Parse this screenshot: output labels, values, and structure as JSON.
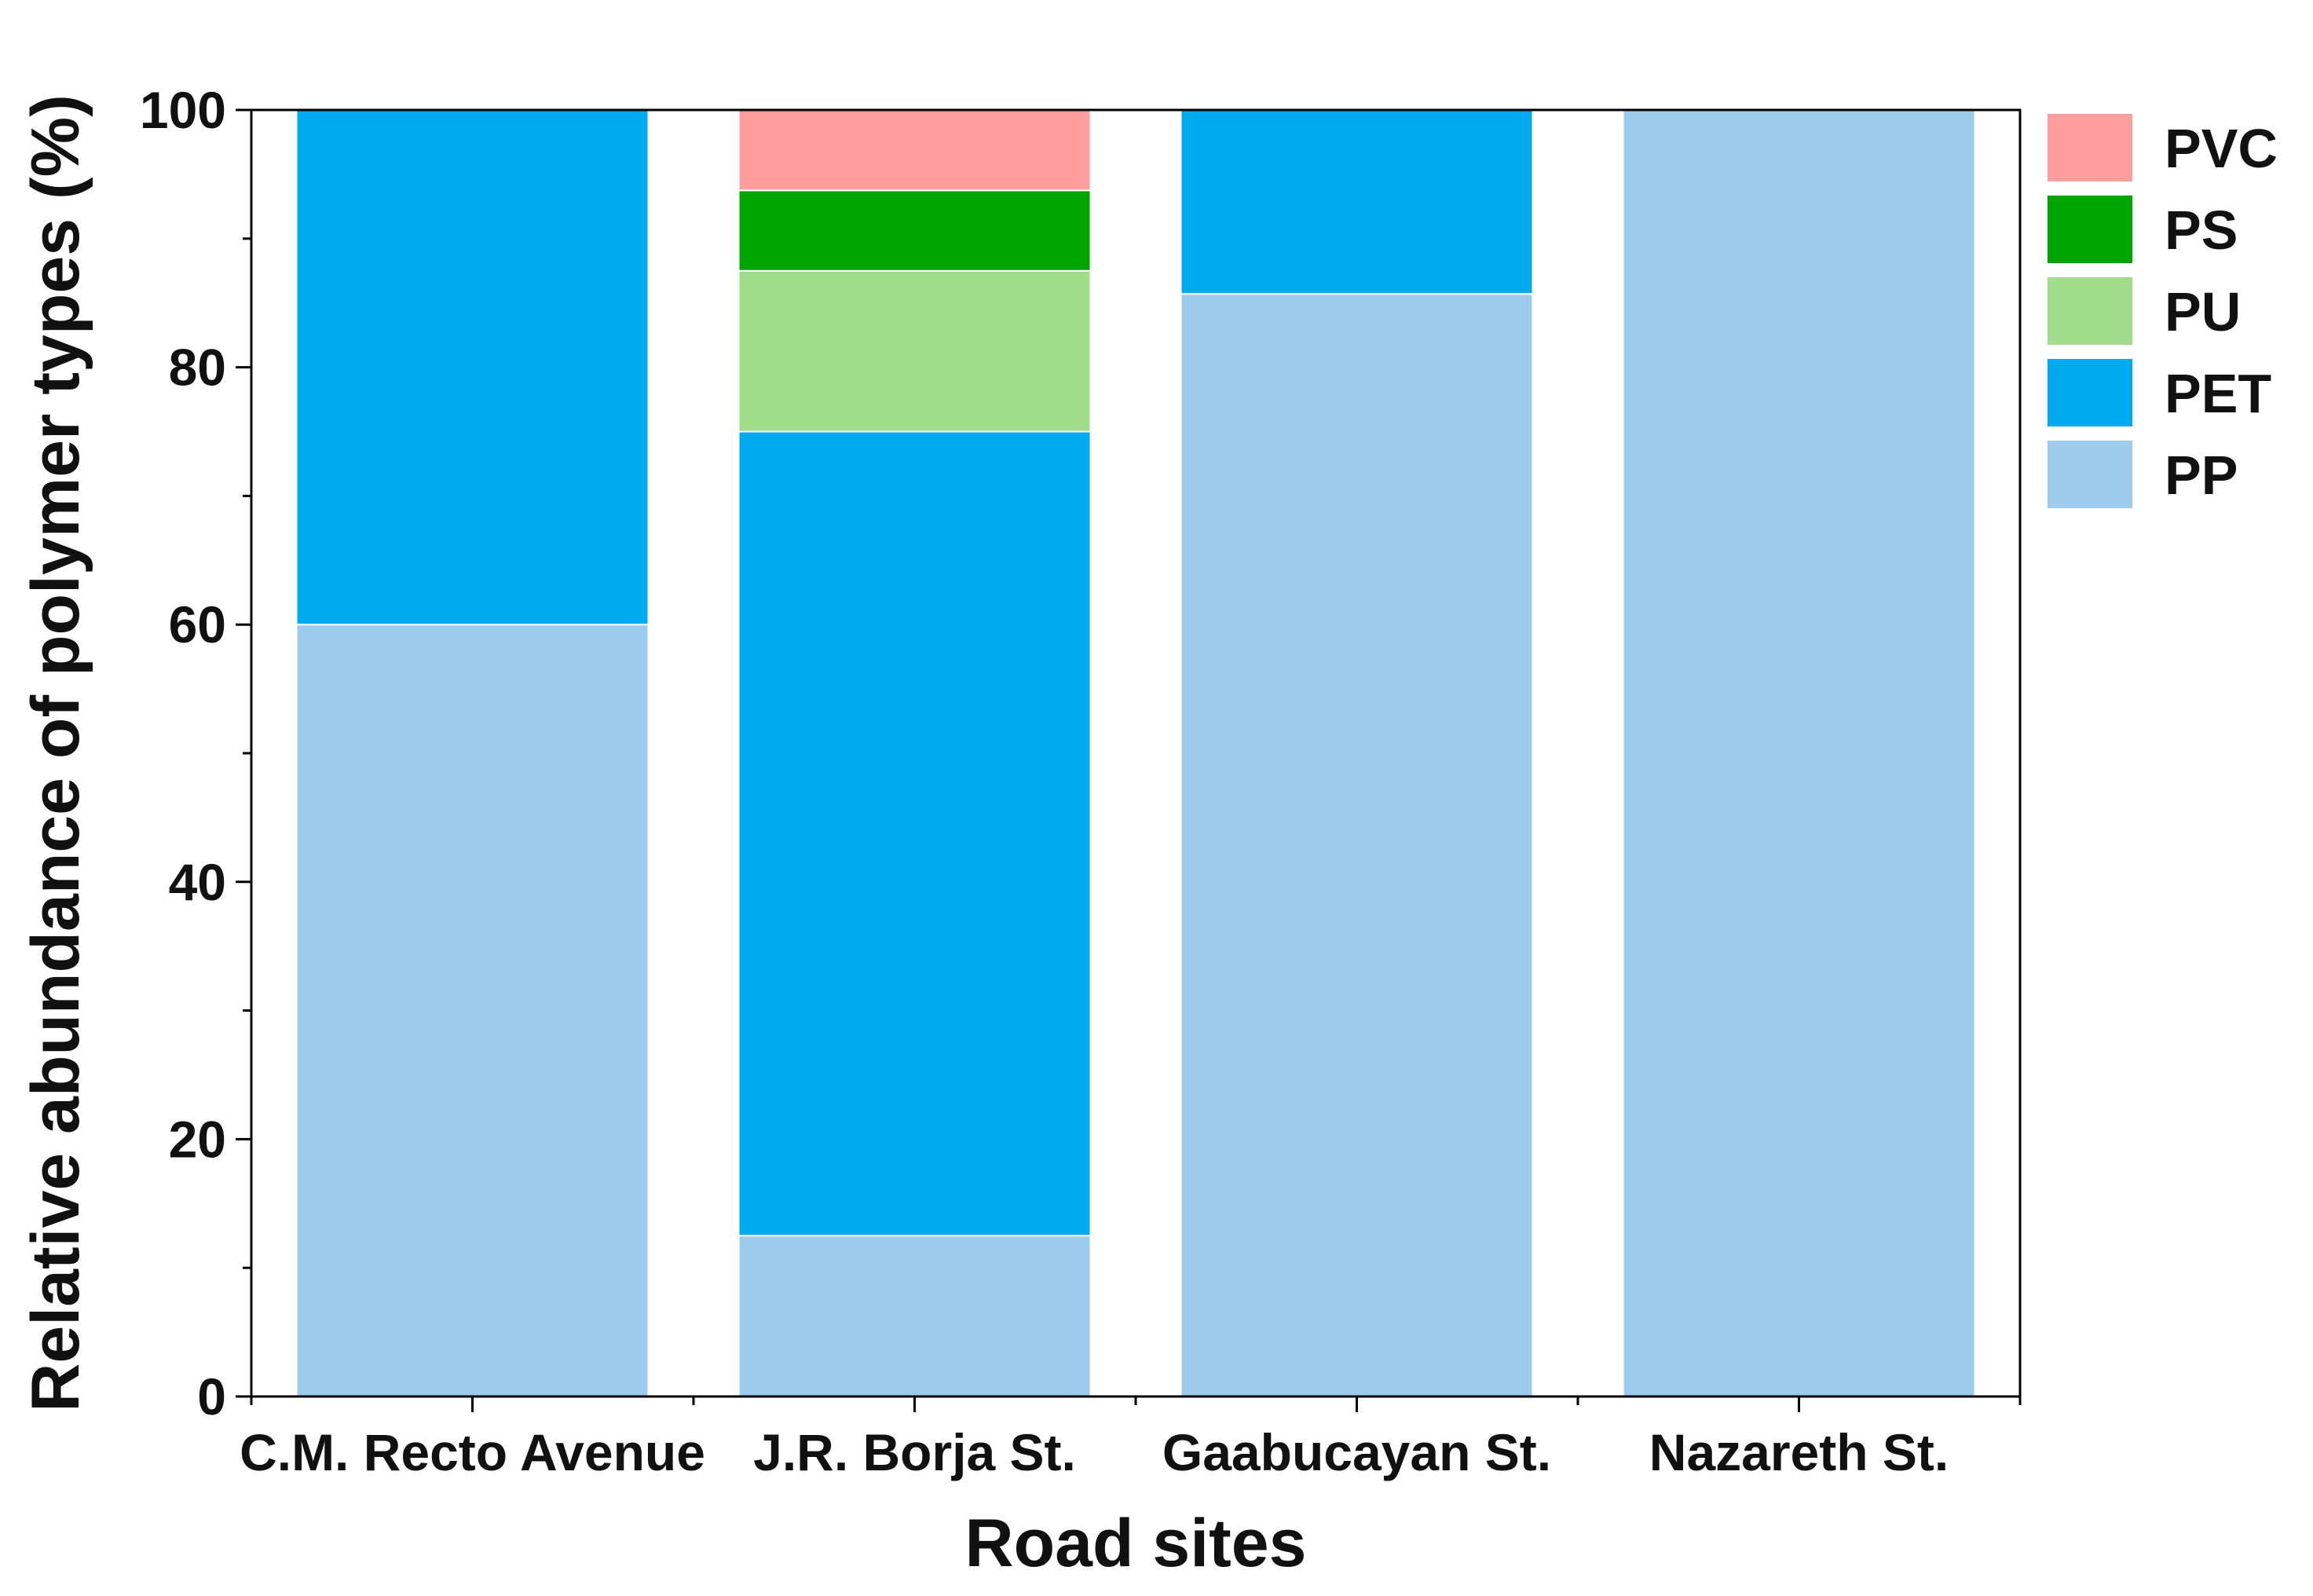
{
  "chart_data": {
    "type": "bar",
    "stacked": true,
    "categories": [
      "C.M. Recto Avenue",
      "J.R. Borja St.",
      "Gaabucayan St.",
      "Nazareth St."
    ],
    "series": [
      {
        "name": "PP",
        "color": "#9dcbee",
        "values": [
          60,
          12.5,
          85.7,
          100
        ]
      },
      {
        "name": "PET",
        "color": "#00aaee",
        "values": [
          40,
          62.5,
          14.3,
          0
        ]
      },
      {
        "name": "PU",
        "color": "#a0dd8b",
        "values": [
          0,
          12.5,
          0,
          0
        ]
      },
      {
        "name": "PS",
        "color": "#00a500",
        "values": [
          0,
          6.25,
          0,
          0
        ]
      },
      {
        "name": "PVC",
        "color": "#fe9d9b",
        "values": [
          0,
          6.25,
          0,
          0
        ]
      }
    ],
    "legend_order": [
      "PVC",
      "PS",
      "PU",
      "PET",
      "PP"
    ],
    "legend_placement": "right",
    "xlabel": "Road sites",
    "ylabel": "Relative abundance of polymer types (%)",
    "ylim": [
      0,
      100
    ],
    "yticks": [
      0,
      20,
      40,
      60,
      80,
      100
    ],
    "grid": false
  }
}
